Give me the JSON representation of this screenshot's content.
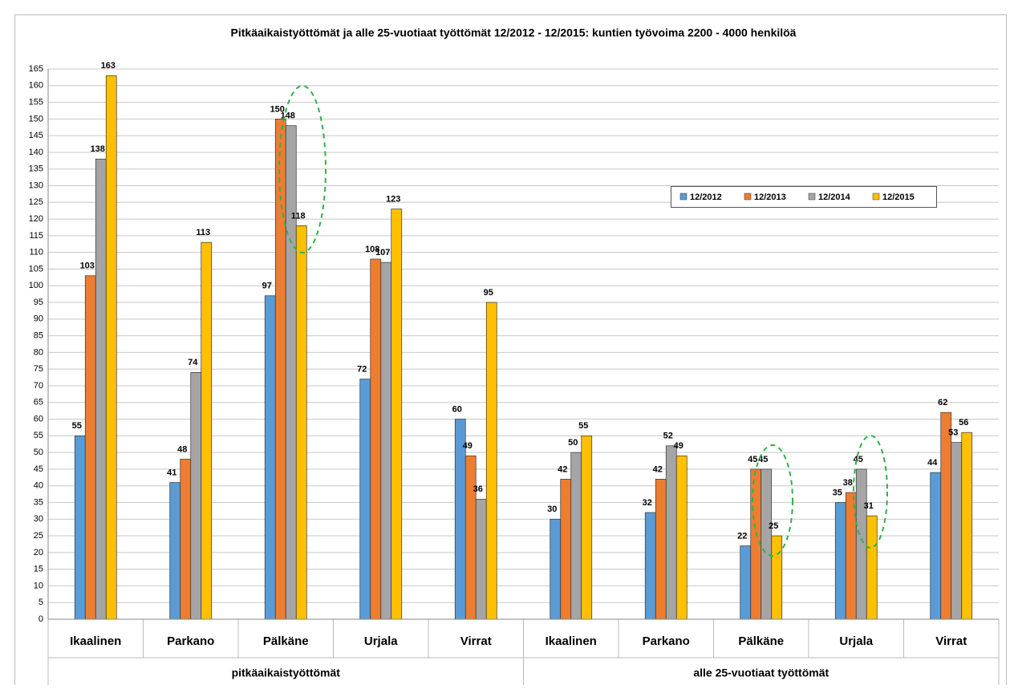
{
  "chart_data": {
    "type": "bar",
    "title": "Pitkäaikaistyöttömät ja alle 25-vuotiaat työttömät 12/2012 - 12/2015: kuntien työvoima 2200 - 4000 henkilöä",
    "categories": [
      "Ikaalinen",
      "Parkano",
      "Pälkäne",
      "Urjala",
      "Virrat",
      "Ikaalinen",
      "Parkano",
      "Pälkäne",
      "Urjala",
      "Virrat"
    ],
    "groups": [
      "pitkäaikaistyöttömät",
      "alle 25-vuotiaat työttömät"
    ],
    "series": [
      {
        "name": "12/2012",
        "color": "#5b9bd5",
        "values": [
          55,
          41,
          97,
          72,
          60,
          30,
          32,
          22,
          35,
          44
        ]
      },
      {
        "name": "12/2013",
        "color": "#ed7d31",
        "values": [
          103,
          48,
          150,
          108,
          49,
          42,
          42,
          45,
          38,
          62
        ]
      },
      {
        "name": "12/2014",
        "color": "#a5a5a5",
        "values": [
          138,
          74,
          148,
          107,
          36,
          50,
          52,
          45,
          45,
          53
        ]
      },
      {
        "name": "12/2015",
        "color": "#ffc000",
        "values": [
          163,
          113,
          118,
          123,
          95,
          55,
          49,
          25,
          31,
          56
        ]
      }
    ],
    "ylim": [
      0,
      165
    ],
    "yticks": [
      0,
      5,
      10,
      15,
      20,
      25,
      30,
      35,
      40,
      45,
      50,
      55,
      60,
      65,
      70,
      75,
      80,
      85,
      90,
      95,
      100,
      105,
      110,
      115,
      120,
      125,
      130,
      135,
      140,
      145,
      150,
      155,
      160,
      165
    ],
    "grid": true
  }
}
